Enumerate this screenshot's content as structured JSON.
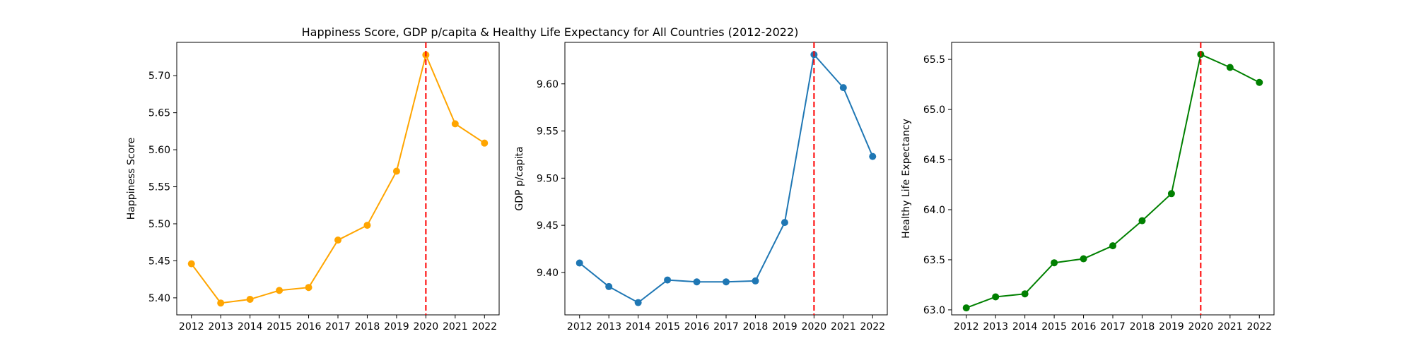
{
  "title": "Happiness Score, GDP p/capita & Healthy Life Expectancy for All Countries (2012-2022)",
  "chart_data": [
    {
      "type": "line",
      "title": "",
      "xlabel": "",
      "ylabel": "Happiness Score",
      "x": [
        2012,
        2013,
        2014,
        2015,
        2016,
        2017,
        2018,
        2019,
        2020,
        2021,
        2022
      ],
      "series": [
        {
          "values": [
            5.446,
            5.393,
            5.398,
            5.41,
            5.414,
            5.478,
            5.498,
            5.571,
            5.728,
            5.635,
            5.609
          ]
        }
      ],
      "ylim": [
        5.377,
        5.745
      ],
      "yticks": [
        5.4,
        5.45,
        5.5,
        5.55,
        5.6,
        5.65,
        5.7
      ],
      "ytick_labels": [
        "5.40",
        "5.45",
        "5.50",
        "5.55",
        "5.60",
        "5.65",
        "5.70"
      ],
      "vline_x": 2020,
      "color": "#FFA500",
      "vline_color": "#FF0000",
      "grid": false,
      "legend": "none"
    },
    {
      "type": "line",
      "title": "",
      "xlabel": "",
      "ylabel": "GDP p/capita",
      "x": [
        2012,
        2013,
        2014,
        2015,
        2016,
        2017,
        2018,
        2019,
        2020,
        2021,
        2022
      ],
      "series": [
        {
          "values": [
            9.41,
            9.385,
            9.368,
            9.392,
            9.39,
            9.39,
            9.391,
            9.453,
            9.631,
            9.596,
            9.523
          ]
        }
      ],
      "ylim": [
        9.355,
        9.644
      ],
      "yticks": [
        9.4,
        9.45,
        9.5,
        9.55,
        9.6
      ],
      "ytick_labels": [
        "9.40",
        "9.45",
        "9.50",
        "9.55",
        "9.60"
      ],
      "vline_x": 2020,
      "color": "#1F77B4",
      "vline_color": "#FF0000",
      "grid": false,
      "legend": "none"
    },
    {
      "type": "line",
      "title": "",
      "xlabel": "",
      "ylabel": "Healthy Life Expectancy",
      "x": [
        2012,
        2013,
        2014,
        2015,
        2016,
        2017,
        2018,
        2019,
        2020,
        2021,
        2022
      ],
      "series": [
        {
          "values": [
            63.02,
            63.13,
            63.16,
            63.47,
            63.51,
            63.64,
            63.89,
            64.16,
            65.55,
            65.42,
            65.27
          ]
        }
      ],
      "ylim": [
        62.95,
        65.67
      ],
      "yticks": [
        63.0,
        63.5,
        64.0,
        64.5,
        65.0,
        65.5
      ],
      "ytick_labels": [
        "63.0",
        "63.5",
        "64.0",
        "64.5",
        "65.0",
        "65.5"
      ],
      "vline_x": 2020,
      "color": "#008000",
      "vline_color": "#FF0000",
      "grid": false,
      "legend": "none"
    }
  ]
}
